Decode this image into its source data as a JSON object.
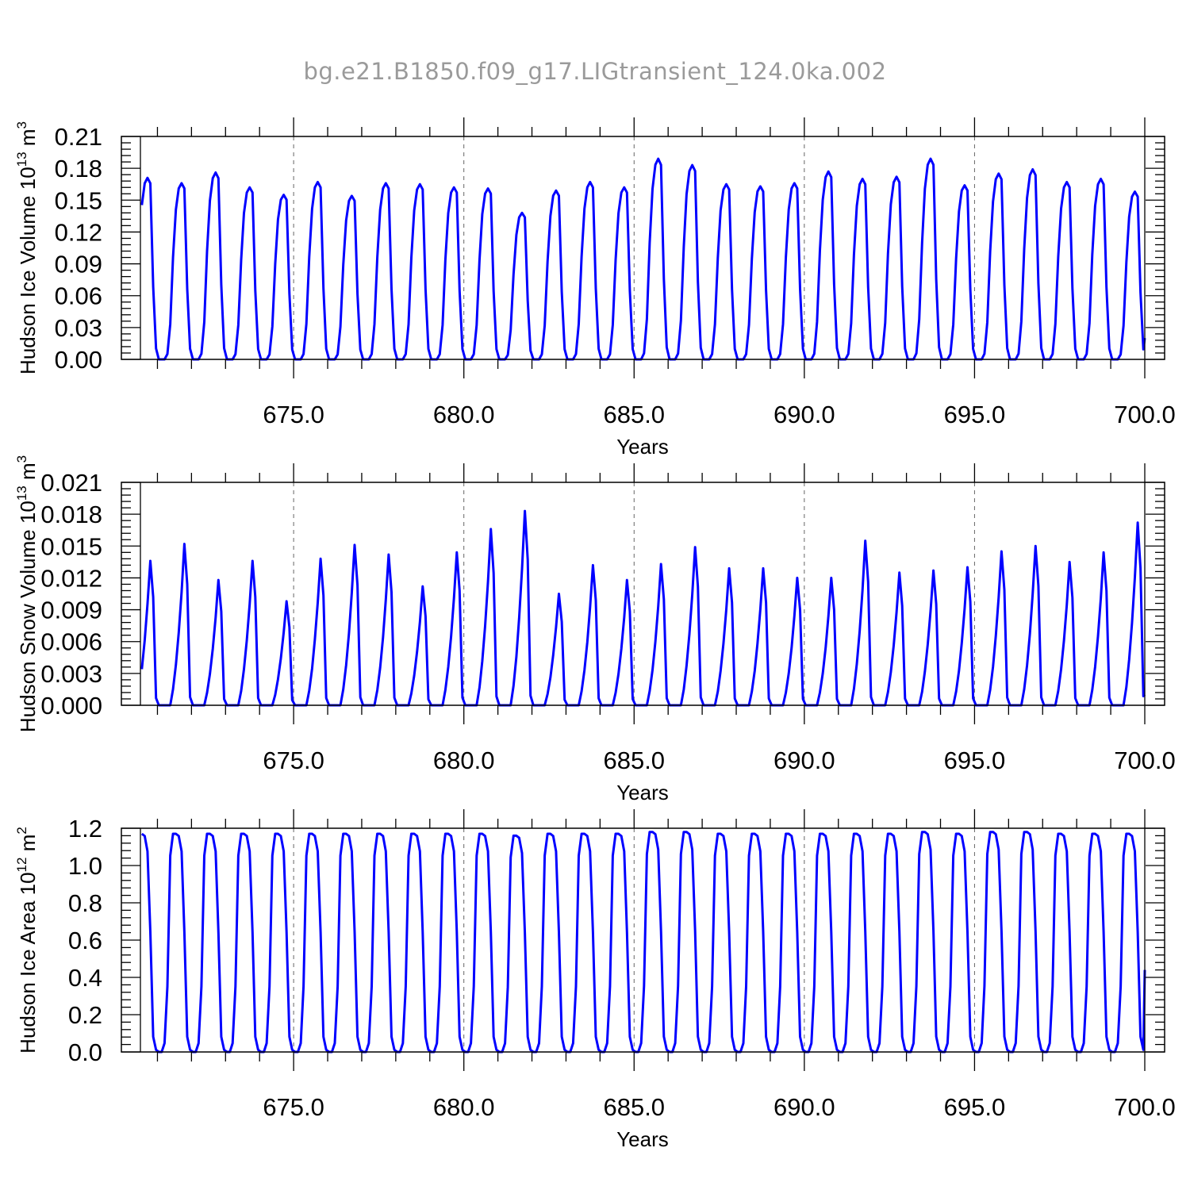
{
  "title": "bg.e21.B1850.f09_g17.LIGtransient_124.0ka.002",
  "chart_data": [
    {
      "type": "line",
      "ylabel": "Hudson Ice Volume 10",
      "ylabel_exp": "13",
      "ylabel_unit": " m",
      "ylabel_unit_exp": "3",
      "xlabel": "Years",
      "xlim": [
        670.5,
        700
      ],
      "ylim": [
        0,
        0.21
      ],
      "yticks": [
        0.0,
        0.03,
        0.06,
        0.09,
        0.12,
        0.15,
        0.18,
        0.21
      ],
      "ytick_labels": [
        "0.00",
        "0.03",
        "0.06",
        "0.09",
        "0.12",
        "0.15",
        "0.18",
        "0.21"
      ],
      "xticks": [
        675,
        680,
        685,
        690,
        695,
        700
      ],
      "xtick_labels": [
        "675.0",
        "680.0",
        "685.0",
        "690.0",
        "695.0",
        "700.0"
      ],
      "grid_x": true,
      "color": "#0000ff",
      "start_offset": 0.5,
      "end_value": 0.02,
      "year_peaks": [
        0.171,
        0.166,
        0.176,
        0.162,
        0.155,
        0.167,
        0.154,
        0.166,
        0.165,
        0.162,
        0.161,
        0.138,
        0.159,
        0.167,
        0.162,
        0.189,
        0.183,
        0.165,
        0.163,
        0.166,
        0.177,
        0.17,
        0.172,
        0.189,
        0.164,
        0.175,
        0.179,
        0.167,
        0.17,
        0.158
      ],
      "monthly_shape": [
        0.0,
        0.0,
        0.0,
        0.03,
        0.2,
        0.58,
        0.85,
        0.97,
        1.0,
        0.97,
        0.4,
        0.06
      ]
    },
    {
      "type": "line",
      "ylabel": "Hudson Snow Volume 10",
      "ylabel_exp": "13",
      "ylabel_unit": " m",
      "ylabel_unit_exp": "3",
      "xlabel": "Years",
      "xlim": [
        670.5,
        700
      ],
      "ylim": [
        0,
        0.021
      ],
      "yticks": [
        0.0,
        0.003,
        0.006,
        0.009,
        0.012,
        0.015,
        0.018,
        0.021
      ],
      "ytick_labels": [
        "0.000",
        "0.003",
        "0.006",
        "0.009",
        "0.012",
        "0.015",
        "0.018",
        "0.021"
      ],
      "xticks": [
        675,
        680,
        685,
        690,
        695,
        700
      ],
      "xtick_labels": [
        "675.0",
        "680.0",
        "685.0",
        "690.0",
        "695.0",
        "700.0"
      ],
      "grid_x": true,
      "color": "#0000ff",
      "start_offset": 0.5,
      "end_value": 0.001,
      "year_peaks": [
        0.0136,
        0.0152,
        0.0118,
        0.0136,
        0.0098,
        0.0138,
        0.0151,
        0.0142,
        0.0112,
        0.0144,
        0.0166,
        0.0183,
        0.0105,
        0.0132,
        0.0118,
        0.0133,
        0.0149,
        0.0129,
        0.0129,
        0.012,
        0.012,
        0.0155,
        0.0125,
        0.0127,
        0.013,
        0.0145,
        0.015,
        0.0135,
        0.0144,
        0.0172
      ],
      "monthly_shape": [
        0.0,
        0.0,
        0.0,
        0.0,
        0.0,
        0.1,
        0.25,
        0.45,
        0.7,
        1.0,
        0.75,
        0.05
      ]
    },
    {
      "type": "line",
      "ylabel": "Hudson Ice Area 10",
      "ylabel_exp": "12",
      "ylabel_unit": " m",
      "ylabel_unit_exp": "2",
      "xlabel": "Years",
      "xlim": [
        670.5,
        700
      ],
      "ylim": [
        0,
        1.2
      ],
      "yticks": [
        0.0,
        0.2,
        0.4,
        0.6,
        0.8,
        1.0,
        1.2
      ],
      "ytick_labels": [
        "0.0",
        "0.2",
        "0.4",
        "0.6",
        "0.8",
        "1.0",
        "1.2"
      ],
      "xticks": [
        675,
        680,
        685,
        690,
        695,
        700
      ],
      "xtick_labels": [
        "675.0",
        "680.0",
        "685.0",
        "690.0",
        "695.0",
        "700.0"
      ],
      "grid_x": true,
      "color": "#0000ff",
      "start_offset": 0.5,
      "end_value": 0.44,
      "year_peaks": [
        1.17,
        1.17,
        1.17,
        1.17,
        1.17,
        1.17,
        1.17,
        1.17,
        1.17,
        1.17,
        1.17,
        1.16,
        1.17,
        1.17,
        1.17,
        1.18,
        1.18,
        1.17,
        1.17,
        1.17,
        1.17,
        1.17,
        1.17,
        1.18,
        1.17,
        1.18,
        1.18,
        1.17,
        1.17,
        1.17
      ],
      "monthly_shape": [
        0.0,
        0.0,
        0.04,
        0.3,
        0.9,
        1.0,
        1.0,
        0.99,
        0.92,
        0.55,
        0.07,
        0.01
      ]
    }
  ]
}
